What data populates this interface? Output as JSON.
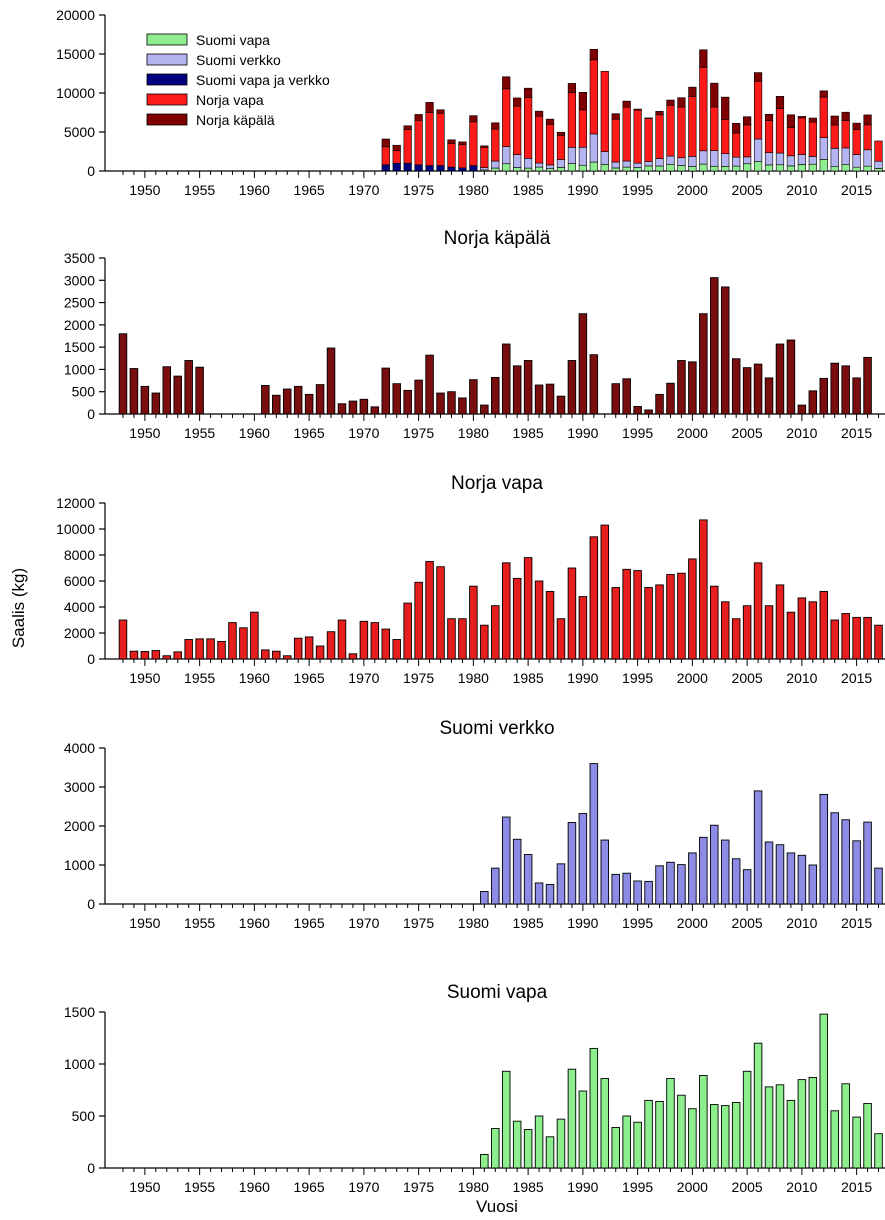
{
  "figure": {
    "ylabel": "Saalis (kg)",
    "xlabel": "Vuosi"
  },
  "colors": {
    "suomi_vapa": "#90EE90",
    "suomi_verkko": "#B4B4F0",
    "suomi_vapa_ja_verkko": "#00007F",
    "norja_vapa": "#FF1A1A",
    "norja_kapala": "#7F0000",
    "panel_norja_kapala": "#7A0E0E",
    "panel_norja_vapa": "#E61E1E",
    "panel_suomi_verkko": "#8C8CE6",
    "panel_suomi_vapa": "#8CEE8C"
  },
  "chart_data": [
    {
      "type": "bar",
      "stacked": true,
      "title": "",
      "ylim": [
        0,
        20000
      ],
      "yticks": [
        0,
        5000,
        10000,
        15000,
        20000
      ],
      "xrange": [
        1947,
        2017
      ],
      "xticks": [
        1950,
        1955,
        1960,
        1965,
        1970,
        1975,
        1980,
        1985,
        1990,
        1995,
        2000,
        2005,
        2010,
        2015
      ],
      "legend_position": "top-left",
      "legend": [
        {
          "name": "Suomi vapa",
          "color_key": "suomi_vapa"
        },
        {
          "name": "Suomi verkko",
          "color_key": "suomi_verkko"
        },
        {
          "name": "Suomi vapa ja verkko",
          "color_key": "suomi_vapa_ja_verkko"
        },
        {
          "name": "Norja vapa",
          "color_key": "norja_vapa"
        },
        {
          "name": "Norja käpälä",
          "color_key": "norja_kapala"
        }
      ],
      "x": [
        1972,
        1973,
        1974,
        1975,
        1976,
        1977,
        1978,
        1979,
        1980,
        1981,
        1982,
        1983,
        1984,
        1985,
        1986,
        1987,
        1988,
        1989,
        1990,
        1991,
        1992,
        1993,
        1994,
        1995,
        1996,
        1997,
        1998,
        1999,
        2000,
        2001,
        2002,
        2003,
        2004,
        2005,
        2006,
        2007,
        2008,
        2009,
        2010,
        2011,
        2012,
        2013,
        2014,
        2015,
        2016,
        2017
      ],
      "series": [
        {
          "name": "Suomi vapa ja verkko",
          "color_key": "suomi_vapa_ja_verkko",
          "values": [
            800,
            1000,
            1000,
            800,
            700,
            700,
            500,
            400,
            700,
            0,
            0,
            0,
            0,
            0,
            0,
            0,
            0,
            0,
            0,
            0,
            0,
            0,
            0,
            0,
            0,
            0,
            0,
            0,
            0,
            0,
            0,
            0,
            0,
            0,
            0,
            0,
            0,
            0,
            0,
            0,
            0,
            0,
            0,
            0,
            0,
            0
          ]
        },
        {
          "name": "Suomi vapa",
          "color_key": "suomi_vapa",
          "values": [
            0,
            0,
            0,
            0,
            0,
            0,
            0,
            0,
            0,
            130,
            380,
            930,
            450,
            370,
            500,
            300,
            470,
            950,
            740,
            1150,
            860,
            390,
            500,
            440,
            650,
            640,
            860,
            700,
            570,
            890,
            610,
            600,
            630,
            930,
            1200,
            780,
            800,
            650,
            850,
            870,
            1480,
            550,
            810,
            490,
            620,
            330
          ]
        },
        {
          "name": "Suomi verkko",
          "color_key": "suomi_verkko",
          "values": [
            0,
            0,
            0,
            0,
            0,
            0,
            0,
            0,
            0,
            300,
            900,
            2200,
            1650,
            1250,
            520,
            480,
            1000,
            2080,
            2300,
            3600,
            1620,
            760,
            780,
            570,
            580,
            960,
            1060,
            1000,
            1300,
            1700,
            2000,
            1620,
            1140,
            880,
            2900,
            1570,
            1500,
            1300,
            1250,
            1000,
            2800,
            2350,
            2150,
            1620,
            2100,
            920
          ]
        },
        {
          "name": "Norja vapa",
          "color_key": "norja_vapa",
          "values": [
            2300,
            1600,
            4300,
            5700,
            6800,
            6700,
            3000,
            3000,
            5600,
            2600,
            4100,
            7400,
            6200,
            7800,
            6000,
            5200,
            3100,
            7000,
            4800,
            9500,
            10300,
            5500,
            6900,
            6800,
            5500,
            5600,
            6500,
            6500,
            7700,
            10700,
            5600,
            4400,
            3100,
            4100,
            7400,
            4100,
            5700,
            3600,
            4700,
            4400,
            5200,
            3000,
            3500,
            3200,
            3200,
            2600
          ]
        },
        {
          "name": "Norja käpälä",
          "color_key": "norja_kapala",
          "values": [
            1000,
            700,
            500,
            750,
            1300,
            450,
            500,
            330,
            800,
            200,
            800,
            1550,
            1070,
            1200,
            650,
            670,
            400,
            1200,
            2250,
            1350,
            0,
            700,
            780,
            130,
            80,
            450,
            680,
            1200,
            1180,
            2250,
            3050,
            2850,
            1250,
            1050,
            1120,
            820,
            1570,
            1660,
            200,
            520,
            800,
            1150,
            1080,
            830,
            1270,
            0
          ]
        }
      ]
    },
    {
      "type": "bar",
      "title": "Norja käpälä",
      "color_key": "panel_norja_kapala",
      "ylim": [
        0,
        3500
      ],
      "yticks": [
        0,
        500,
        1000,
        1500,
        2000,
        2500,
        3000,
        3500
      ],
      "xrange": [
        1947,
        2017
      ],
      "xticks": [
        1950,
        1955,
        1960,
        1965,
        1970,
        1975,
        1980,
        1985,
        1990,
        1995,
        2000,
        2005,
        2010,
        2015
      ],
      "x": [
        1948,
        1949,
        1950,
        1951,
        1952,
        1953,
        1954,
        1955,
        1956,
        1957,
        1958,
        1959,
        1960,
        1961,
        1962,
        1963,
        1964,
        1965,
        1966,
        1967,
        1968,
        1969,
        1970,
        1971,
        1972,
        1973,
        1974,
        1975,
        1976,
        1977,
        1978,
        1979,
        1980,
        1981,
        1982,
        1983,
        1984,
        1985,
        1986,
        1987,
        1988,
        1989,
        1990,
        1991,
        1992,
        1993,
        1994,
        1995,
        1996,
        1997,
        1998,
        1999,
        2000,
        2001,
        2002,
        2003,
        2004,
        2005,
        2006,
        2007,
        2008,
        2009,
        2010,
        2011,
        2012,
        2013,
        2014,
        2015,
        2016,
        2017
      ],
      "values": [
        1800,
        1020,
        620,
        470,
        1060,
        850,
        1200,
        1050,
        0,
        0,
        0,
        0,
        0,
        640,
        420,
        560,
        620,
        440,
        660,
        1480,
        230,
        290,
        330,
        160,
        1030,
        680,
        530,
        760,
        1320,
        470,
        500,
        360,
        770,
        200,
        820,
        1570,
        1080,
        1200,
        650,
        670,
        400,
        1200,
        2250,
        1330,
        0,
        680,
        790,
        170,
        90,
        440,
        690,
        1200,
        1170,
        2250,
        3060,
        2850,
        1240,
        1040,
        1120,
        810,
        1570,
        1660,
        200,
        520,
        800,
        1140,
        1080,
        810,
        1270,
        0
      ]
    },
    {
      "type": "bar",
      "title": "Norja vapa",
      "color_key": "panel_norja_vapa",
      "ylim": [
        0,
        12000
      ],
      "yticks": [
        0,
        2000,
        4000,
        6000,
        8000,
        10000,
        12000
      ],
      "xrange": [
        1947,
        2017
      ],
      "xticks": [
        1950,
        1955,
        1960,
        1965,
        1970,
        1975,
        1980,
        1985,
        1990,
        1995,
        2000,
        2005,
        2010,
        2015
      ],
      "x": [
        1948,
        1949,
        1950,
        1951,
        1952,
        1953,
        1954,
        1955,
        1956,
        1957,
        1958,
        1959,
        1960,
        1961,
        1962,
        1963,
        1964,
        1965,
        1966,
        1967,
        1968,
        1969,
        1970,
        1971,
        1972,
        1973,
        1974,
        1975,
        1976,
        1977,
        1978,
        1979,
        1980,
        1981,
        1982,
        1983,
        1984,
        1985,
        1986,
        1987,
        1988,
        1989,
        1990,
        1991,
        1992,
        1993,
        1994,
        1995,
        1996,
        1997,
        1998,
        1999,
        2000,
        2001,
        2002,
        2003,
        2004,
        2005,
        2006,
        2007,
        2008,
        2009,
        2010,
        2011,
        2012,
        2013,
        2014,
        2015,
        2016,
        2017
      ],
      "values": [
        3000,
        600,
        580,
        650,
        250,
        550,
        1500,
        1550,
        1550,
        1350,
        2800,
        2400,
        3600,
        700,
        600,
        250,
        1600,
        1700,
        1000,
        2100,
        3000,
        400,
        2900,
        2800,
        2300,
        1500,
        4300,
        5900,
        7500,
        7100,
        3100,
        3100,
        5600,
        2600,
        4100,
        7400,
        6200,
        7800,
        6000,
        5200,
        3100,
        7000,
        4800,
        9400,
        10300,
        5500,
        6900,
        6800,
        5500,
        5700,
        6500,
        6600,
        7700,
        10700,
        5600,
        4400,
        3100,
        4100,
        7400,
        4100,
        5700,
        3600,
        4700,
        4400,
        5200,
        3000,
        3500,
        3200,
        3200,
        2600
      ]
    },
    {
      "type": "bar",
      "title": "Suomi verkko",
      "color_key": "panel_suomi_verkko",
      "ylim": [
        0,
        4000
      ],
      "yticks": [
        0,
        1000,
        2000,
        3000,
        4000
      ],
      "xrange": [
        1947,
        2017
      ],
      "xticks": [
        1950,
        1955,
        1960,
        1965,
        1970,
        1975,
        1980,
        1985,
        1990,
        1995,
        2000,
        2005,
        2010,
        2015
      ],
      "x": [
        1981,
        1982,
        1983,
        1984,
        1985,
        1986,
        1987,
        1988,
        1989,
        1990,
        1991,
        1992,
        1993,
        1994,
        1995,
        1996,
        1997,
        1998,
        1999,
        2000,
        2001,
        2002,
        2003,
        2004,
        2005,
        2006,
        2007,
        2008,
        2009,
        2010,
        2011,
        2012,
        2013,
        2014,
        2015,
        2016,
        2017
      ],
      "values": [
        320,
        920,
        2230,
        1660,
        1270,
        540,
        500,
        1030,
        2090,
        2320,
        3600,
        1640,
        760,
        790,
        590,
        580,
        980,
        1070,
        1010,
        1310,
        1710,
        2020,
        1640,
        1160,
        880,
        2900,
        1590,
        1520,
        1310,
        1250,
        1000,
        2810,
        2340,
        2160,
        1620,
        2100,
        920
      ]
    },
    {
      "type": "bar",
      "title": "Suomi vapa",
      "color_key": "panel_suomi_vapa",
      "ylim": [
        0,
        1500
      ],
      "yticks": [
        0,
        500,
        1000,
        1500
      ],
      "xrange": [
        1947,
        2017
      ],
      "xticks": [
        1950,
        1955,
        1960,
        1965,
        1970,
        1975,
        1980,
        1985,
        1990,
        1995,
        2000,
        2005,
        2010,
        2015
      ],
      "x": [
        1981,
        1982,
        1983,
        1984,
        1985,
        1986,
        1987,
        1988,
        1989,
        1990,
        1991,
        1992,
        1993,
        1994,
        1995,
        1996,
        1997,
        1998,
        1999,
        2000,
        2001,
        2002,
        2003,
        2004,
        2005,
        2006,
        2007,
        2008,
        2009,
        2010,
        2011,
        2012,
        2013,
        2014,
        2015,
        2016,
        2017
      ],
      "values": [
        130,
        380,
        930,
        450,
        370,
        500,
        300,
        470,
        950,
        740,
        1150,
        860,
        390,
        500,
        440,
        650,
        640,
        860,
        700,
        570,
        890,
        610,
        600,
        630,
        930,
        1200,
        780,
        800,
        650,
        850,
        870,
        1480,
        550,
        810,
        490,
        620,
        330
      ]
    }
  ]
}
